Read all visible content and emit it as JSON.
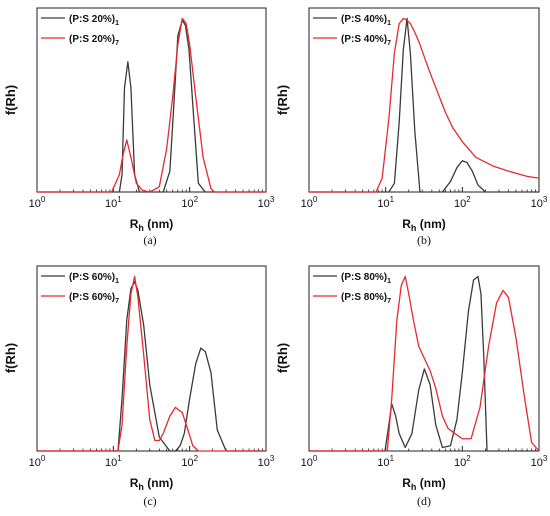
{
  "chart_data": [
    {
      "type": "line",
      "ylabel": "f(Rh)",
      "xlabel": "Rh (nm)",
      "xscale": "log",
      "xlim": [
        1,
        1000
      ],
      "ylim": [
        0,
        1.06
      ],
      "x_ticks": [
        "10^0",
        "10^1",
        "10^2",
        "10^3"
      ],
      "legend_position": "top-left",
      "caption": "(a)",
      "series": [
        {
          "name": "(P:S 20%)1",
          "color": "#3a3a3a",
          "x": [
            1,
            12,
            13,
            14,
            15.5,
            17,
            19,
            22,
            45,
            55,
            62,
            70,
            80,
            88,
            98,
            110,
            130,
            160,
            200,
            1000
          ],
          "y": [
            0,
            0,
            0.1,
            0.6,
            0.75,
            0.6,
            0.1,
            0,
            0,
            0.12,
            0.5,
            0.9,
            0.99,
            0.96,
            0.82,
            0.5,
            0.05,
            0,
            0,
            0
          ]
        },
        {
          "name": "(P:S 20%)7",
          "color": "#e8292e",
          "x": [
            1,
            9.5,
            12,
            13.5,
            15,
            17,
            20,
            24,
            30,
            40,
            50,
            60,
            70,
            80,
            90,
            100,
            120,
            150,
            190,
            210,
            1000
          ],
          "y": [
            0,
            0,
            0.1,
            0.22,
            0.3,
            0.2,
            0.05,
            0.01,
            0,
            0.03,
            0.25,
            0.55,
            0.85,
            1.0,
            0.97,
            0.85,
            0.55,
            0.2,
            0.02,
            0,
            0
          ]
        }
      ]
    },
    {
      "type": "line",
      "ylabel": "f(Rh)",
      "xlabel": "Rh (nm)",
      "xscale": "log",
      "xlim": [
        1,
        1000
      ],
      "ylim": [
        0,
        1.06
      ],
      "x_ticks": [
        "10^0",
        "10^1",
        "10^2",
        "10^3"
      ],
      "legend_position": "top-left",
      "caption": "(b)",
      "series": [
        {
          "name": "(P:S 40%)1",
          "color": "#3a3a3a",
          "x": [
            1,
            11,
            13,
            15,
            17,
            19,
            21,
            24,
            28,
            35,
            55,
            70,
            85,
            100,
            115,
            135,
            160,
            200,
            1000
          ],
          "y": [
            0,
            0,
            0.05,
            0.4,
            0.82,
            1.0,
            0.8,
            0.35,
            0,
            0,
            0,
            0.06,
            0.14,
            0.18,
            0.17,
            0.12,
            0.04,
            0,
            0
          ]
        },
        {
          "name": "(P:S 40%)7",
          "color": "#e8292e",
          "x": [
            1,
            7.5,
            9,
            11,
            13,
            15,
            17,
            19,
            21,
            24,
            28,
            33,
            40,
            50,
            60,
            75,
            100,
            150,
            250,
            400,
            700,
            1000
          ],
          "y": [
            0,
            0,
            0.08,
            0.42,
            0.8,
            0.97,
            1.0,
            0.99,
            0.97,
            0.92,
            0.85,
            0.76,
            0.66,
            0.55,
            0.46,
            0.37,
            0.29,
            0.2,
            0.15,
            0.12,
            0.09,
            0.08
          ]
        }
      ]
    },
    {
      "type": "line",
      "ylabel": "f(Rh)",
      "xlabel": "Rh (nm)",
      "xscale": "log",
      "xlim": [
        1,
        1000
      ],
      "ylim": [
        0,
        1.06
      ],
      "x_ticks": [
        "10^0",
        "10^1",
        "10^2",
        "10^3"
      ],
      "legend_position": "top-left",
      "caption": "(c)",
      "series": [
        {
          "name": "(P:S 60%)1",
          "color": "#3a3a3a",
          "x": [
            1,
            11.5,
            13,
            15,
            17,
            19,
            21,
            25,
            30,
            40,
            55,
            65,
            75,
            85,
            100,
            120,
            140,
            160,
            190,
            230,
            300,
            1000
          ],
          "y": [
            0,
            0,
            0.3,
            0.75,
            0.93,
            0.97,
            0.92,
            0.72,
            0.38,
            0.08,
            0,
            0,
            0.03,
            0.1,
            0.3,
            0.5,
            0.59,
            0.57,
            0.45,
            0.12,
            0,
            0
          ]
        },
        {
          "name": "(P:S 60%)7",
          "color": "#e8292e",
          "x": [
            1,
            11.5,
            13,
            15,
            17,
            19,
            21,
            25,
            30,
            35,
            40,
            45,
            55,
            65,
            80,
            95,
            110,
            130,
            1000
          ],
          "y": [
            0,
            0,
            0.15,
            0.6,
            0.9,
            1.0,
            0.88,
            0.55,
            0.18,
            0.06,
            0.06,
            0.1,
            0.2,
            0.25,
            0.22,
            0.12,
            0.03,
            0,
            0
          ]
        }
      ]
    },
    {
      "type": "line",
      "ylabel": "f(Rh)",
      "xlabel": "Rh (nm)",
      "xscale": "log",
      "xlim": [
        1,
        1000
      ],
      "ylim": [
        0,
        1.06
      ],
      "x_ticks": [
        "10^0",
        "10^1",
        "10^2",
        "10^3"
      ],
      "legend_position": "top-left",
      "caption": "(d)",
      "series": [
        {
          "name": "(P:S 80%)1",
          "color": "#3a3a3a",
          "x": [
            1,
            9.8,
            11,
            12,
            13.5,
            15,
            18,
            22,
            27,
            32,
            38,
            45,
            55,
            70,
            85,
            100,
            120,
            140,
            160,
            175,
            190,
            210,
            1000
          ],
          "y": [
            0,
            0,
            0.15,
            0.27,
            0.2,
            0.1,
            0.02,
            0.1,
            0.35,
            0.47,
            0.38,
            0.15,
            0.02,
            0.03,
            0.18,
            0.45,
            0.8,
            0.98,
            1.0,
            0.9,
            0.55,
            0,
            0
          ]
        },
        {
          "name": "(P:S 80%)7",
          "color": "#e8292e",
          "x": [
            1,
            10.5,
            12,
            14,
            16,
            18,
            20,
            23,
            27,
            32,
            38,
            45,
            55,
            65,
            80,
            100,
            130,
            170,
            220,
            280,
            340,
            400,
            500,
            650,
            800,
            1000
          ],
          "y": [
            0,
            0,
            0.3,
            0.75,
            0.95,
            1.0,
            0.9,
            0.75,
            0.6,
            0.53,
            0.46,
            0.36,
            0.2,
            0.13,
            0.1,
            0.07,
            0.07,
            0.25,
            0.6,
            0.85,
            0.92,
            0.88,
            0.65,
            0.3,
            0.05,
            0
          ]
        }
      ]
    }
  ]
}
